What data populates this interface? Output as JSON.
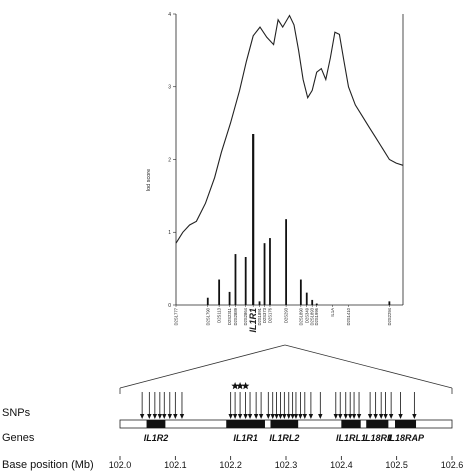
{
  "chart_data": {
    "type": "line",
    "ylabel": "lod score",
    "ylim": [
      0,
      4
    ],
    "y_ticks": [
      "0",
      "1",
      "2",
      "3",
      "4"
    ],
    "lod_curve": {
      "x": [
        0,
        0.03,
        0.06,
        0.09,
        0.13,
        0.17,
        0.2,
        0.24,
        0.28,
        0.31,
        0.34,
        0.37,
        0.4,
        0.43,
        0.45,
        0.47,
        0.5,
        0.52,
        0.54,
        0.56,
        0.58,
        0.6,
        0.62,
        0.64,
        0.66,
        0.68,
        0.7,
        0.72,
        0.74,
        0.76,
        0.79,
        0.82,
        0.85,
        0.88,
        0.91,
        0.94,
        0.97,
        1.0
      ],
      "y": [
        0.85,
        1.0,
        1.1,
        1.15,
        1.4,
        1.75,
        2.1,
        2.5,
        2.95,
        3.35,
        3.7,
        3.82,
        3.68,
        3.58,
        3.92,
        3.82,
        3.98,
        3.85,
        3.5,
        3.1,
        2.85,
        2.95,
        3.2,
        3.25,
        3.1,
        3.4,
        3.75,
        3.72,
        3.35,
        3.0,
        2.75,
        2.6,
        2.45,
        2.3,
        2.15,
        2.0,
        1.95,
        1.92
      ]
    },
    "snp_bars": [
      {
        "marker": "D2S1777",
        "x": 0.0,
        "lod": 0.0
      },
      {
        "marker": "D2S1790",
        "x": 0.14,
        "lod": 0.1
      },
      {
        "marker": "D2S113",
        "x": 0.19,
        "lod": 0.35
      },
      {
        "marker": "D2S2311",
        "x": 0.236,
        "lod": 0.18
      },
      {
        "marker": "D2S2889",
        "x": 0.262,
        "lod": 0.7
      },
      {
        "marker": "D2S2864",
        "x": 0.307,
        "lod": 0.66
      },
      {
        "marker": "IL1R1",
        "x": 0.34,
        "lod": 2.35
      },
      {
        "marker": "D2S373",
        "x": 0.39,
        "lod": 0.85
      },
      {
        "marker": "D2S1891",
        "x": 0.368,
        "lod": 0.05
      },
      {
        "marker": "D2S176",
        "x": 0.414,
        "lod": 0.92
      },
      {
        "marker": "D2S293",
        "x": 0.485,
        "lod": 1.18
      },
      {
        "marker": "D2S1890",
        "x": 0.55,
        "lod": 0.35
      },
      {
        "marker": "D2S349",
        "x": 0.576,
        "lod": 0.17
      },
      {
        "marker": "D2S1893",
        "x": 0.6,
        "lod": 0.07
      },
      {
        "marker": "D2S1996",
        "x": 0.62,
        "lod": 0.02
      },
      {
        "marker": "IL1A",
        "x": 0.69,
        "lod": 0.0
      },
      {
        "marker": "D2S1410",
        "x": 0.76,
        "lod": 0.0
      },
      {
        "marker": "D2S2294",
        "x": 0.94,
        "lod": 0.05
      }
    ],
    "row_labels": {
      "snps": "SNPs",
      "genes": "Genes",
      "base_position": "Base position (Mb)"
    },
    "base_ticks": [
      "102.0",
      "102.1",
      "102.2",
      "102.3",
      "102.4",
      "102.5",
      "102.6"
    ],
    "genes": [
      {
        "name": "IL1R2",
        "start": 102.048,
        "end": 102.082
      },
      {
        "name": "IL1R1",
        "start": 102.192,
        "end": 102.262
      },
      {
        "name": "IL1RL2",
        "start": 102.272,
        "end": 102.322
      },
      {
        "name": "IL1RL1",
        "start": 102.4,
        "end": 102.435
      },
      {
        "name": "IL18R1",
        "start": 102.445,
        "end": 102.485
      },
      {
        "name": "IL18RAP",
        "start": 102.497,
        "end": 102.535
      }
    ],
    "snp_positions": [
      102.04,
      102.053,
      102.063,
      102.072,
      102.08,
      102.09,
      102.1,
      102.112,
      102.2,
      102.208,
      102.217,
      102.227,
      102.235,
      102.246,
      102.255,
      102.268,
      102.276,
      102.283,
      102.29,
      102.297,
      102.305,
      102.312,
      102.318,
      102.326,
      102.334,
      102.345,
      102.362,
      102.39,
      102.398,
      102.408,
      102.416,
      102.423,
      102.432,
      102.452,
      102.462,
      102.472,
      102.48,
      102.49,
      102.507,
      102.532
    ],
    "starred_snps": [
      102.208,
      102.217,
      102.227
    ]
  }
}
